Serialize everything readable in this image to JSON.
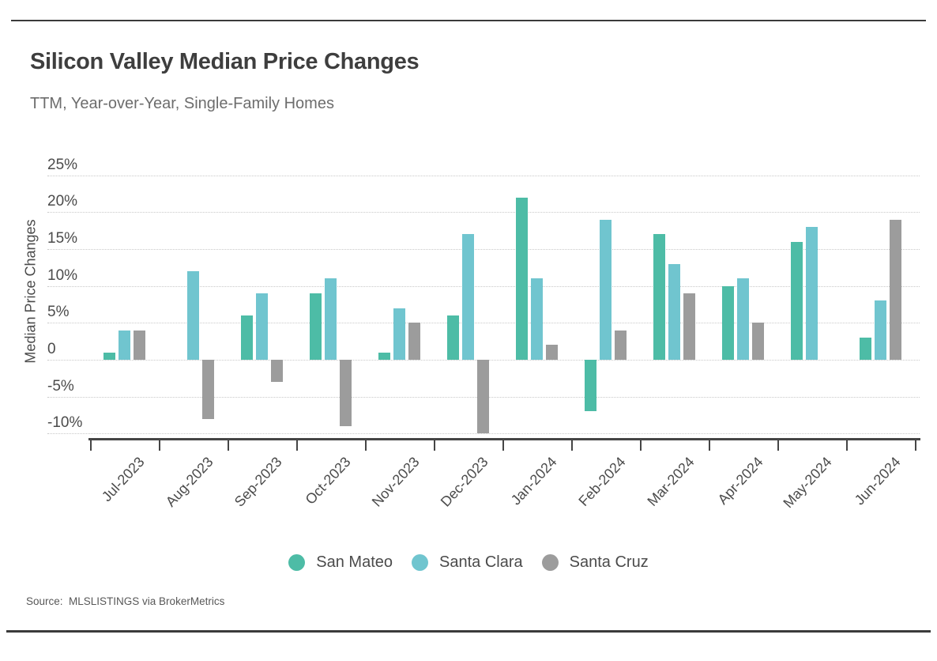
{
  "header": {
    "title": "Silicon Valley Median Price Changes",
    "subtitle": "TTM, Year-over-Year, Single-Family Homes"
  },
  "y_axis": {
    "title": "Median Price Changes",
    "tick_labels": [
      "25%",
      "20%",
      "15%",
      "10%",
      "5%",
      "0",
      "-5%",
      "-10%"
    ],
    "tick_values": [
      25,
      20,
      15,
      10,
      5,
      0,
      -5,
      -10
    ]
  },
  "chart_data": {
    "type": "bar",
    "title": "Silicon Valley Median Price Changes",
    "subtitle": "TTM, Year-over-Year, Single-Family Homes",
    "xlabel": "",
    "ylabel": "Median Price Changes",
    "unit": "percent",
    "ylim": [
      -11,
      25
    ],
    "yticks": [
      25,
      20,
      15,
      10,
      5,
      0,
      -5,
      -10
    ],
    "grid": true,
    "legend_position": "bottom",
    "categories": [
      "Jul-2023",
      "Aug-2023",
      "Sep-2023",
      "Oct-2023",
      "Nov-2023",
      "Dec-2023",
      "Jan-2024",
      "Feb-2024",
      "Mar-2024",
      "Apr-2024",
      "May-2024",
      "Jun-2024"
    ],
    "series": [
      {
        "name": "San Mateo",
        "color": "#4dbca6",
        "values": [
          1,
          0,
          6,
          9,
          1,
          6,
          22,
          -7,
          17,
          10,
          16,
          3
        ]
      },
      {
        "name": "Santa Clara",
        "color": "#70c5cf",
        "values": [
          4,
          12,
          9,
          11,
          7,
          17,
          11,
          19,
          13,
          11,
          18,
          8
        ]
      },
      {
        "name": "Santa Cruz",
        "color": "#9c9c9c",
        "values": [
          4,
          -8,
          -3,
          -9,
          5,
          -10,
          2,
          4,
          9,
          5,
          0,
          19
        ]
      }
    ]
  },
  "source": {
    "text": "Source:  MLSLISTINGS via BrokerMetrics"
  },
  "colors": {
    "axis": "#454545",
    "grid": "#c9c9c9",
    "title_text": "#3e3e3e",
    "subtitle_text": "#6d6d6d",
    "label_text": "#4b4b4b",
    "rule": "#3b3b3b"
  }
}
